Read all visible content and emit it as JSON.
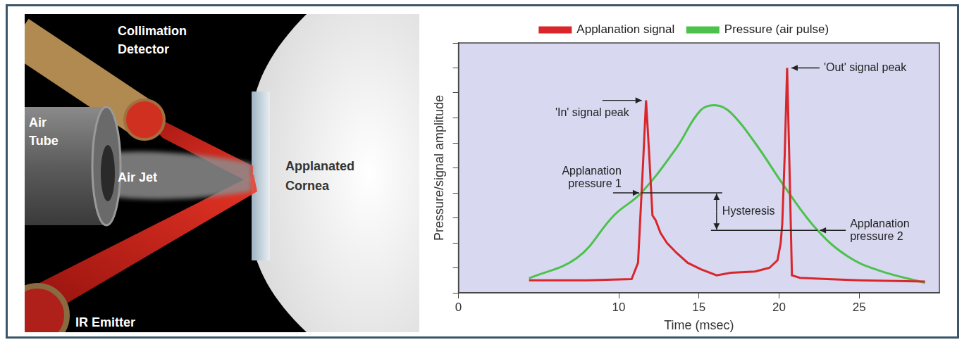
{
  "diagram": {
    "labels": {
      "collimation_detector": "Collimation Detector",
      "air_tube": "Air Tube",
      "air_jet": "Air Jet",
      "applanated_cornea": "Applanated Cornea",
      "ir_emitter": "IR Emitter"
    }
  },
  "chart_data": {
    "type": "line",
    "x_label": "Time (msec)",
    "y_label": "Pressure/signal amplitude",
    "xlim": [
      0,
      30
    ],
    "xticks": [
      0,
      10,
      15,
      20,
      25
    ],
    "ylim": [
      0,
      10
    ],
    "yticks": [
      0,
      1,
      2,
      3,
      4,
      5,
      6,
      7,
      8,
      9,
      10
    ],
    "tick_labels": "x",
    "grid": false,
    "legend": "top",
    "series": [
      {
        "name": "Applanation signal",
        "color": "#d9262a",
        "x": [
          4.4,
          8,
          10.8,
          11.2,
          11.5,
          11.7,
          11.9,
          12.1,
          12.3,
          12.6,
          13.0,
          13.6,
          14.3,
          15.1,
          16.1,
          17,
          18.5,
          19.4,
          19.9,
          20.1,
          20.2,
          20.35,
          20.5,
          20.65,
          20.8,
          21.3,
          23,
          25,
          29.1
        ],
        "values": [
          0.5,
          0.5,
          0.55,
          1.2,
          5.0,
          7.7,
          5.5,
          3.1,
          2.9,
          2.4,
          2.0,
          1.6,
          1.2,
          0.95,
          0.7,
          0.8,
          0.85,
          1.0,
          1.3,
          2.0,
          2.8,
          5.5,
          9.0,
          5.0,
          0.7,
          0.6,
          0.55,
          0.5,
          0.45
        ]
      },
      {
        "name": "Pressure (air pulse)",
        "color": "#4cc24c",
        "x": [
          4.4,
          7.4,
          9.7,
          11.4,
          13.6,
          15.1,
          16.1,
          17.0,
          18.5,
          20.5,
          22.4,
          24.3,
          26.2,
          29.1
        ],
        "values": [
          0.58,
          1.4,
          3.1,
          4.0,
          5.8,
          7.3,
          7.5,
          7.2,
          6.0,
          4.1,
          2.5,
          1.45,
          0.9,
          0.4
        ]
      }
    ],
    "annotations": {
      "in_peak": {
        "text": "'In' signal peak",
        "x": 11.7,
        "y": 7.7
      },
      "out_peak": {
        "text": "'Out' signal peak",
        "x": 20.5,
        "y": 9.0
      },
      "applanation_pressure_1": {
        "text": "Applanation pressure 1",
        "x": 11.4,
        "y": 4.0
      },
      "applanation_pressure_2": {
        "text": "Applanation pressure 2",
        "x": 22.4,
        "y": 2.5
      },
      "hysteresis": {
        "text": "Hysteresis",
        "x": 16.1,
        "y_from": 4.0,
        "y_to": 2.5
      }
    }
  }
}
